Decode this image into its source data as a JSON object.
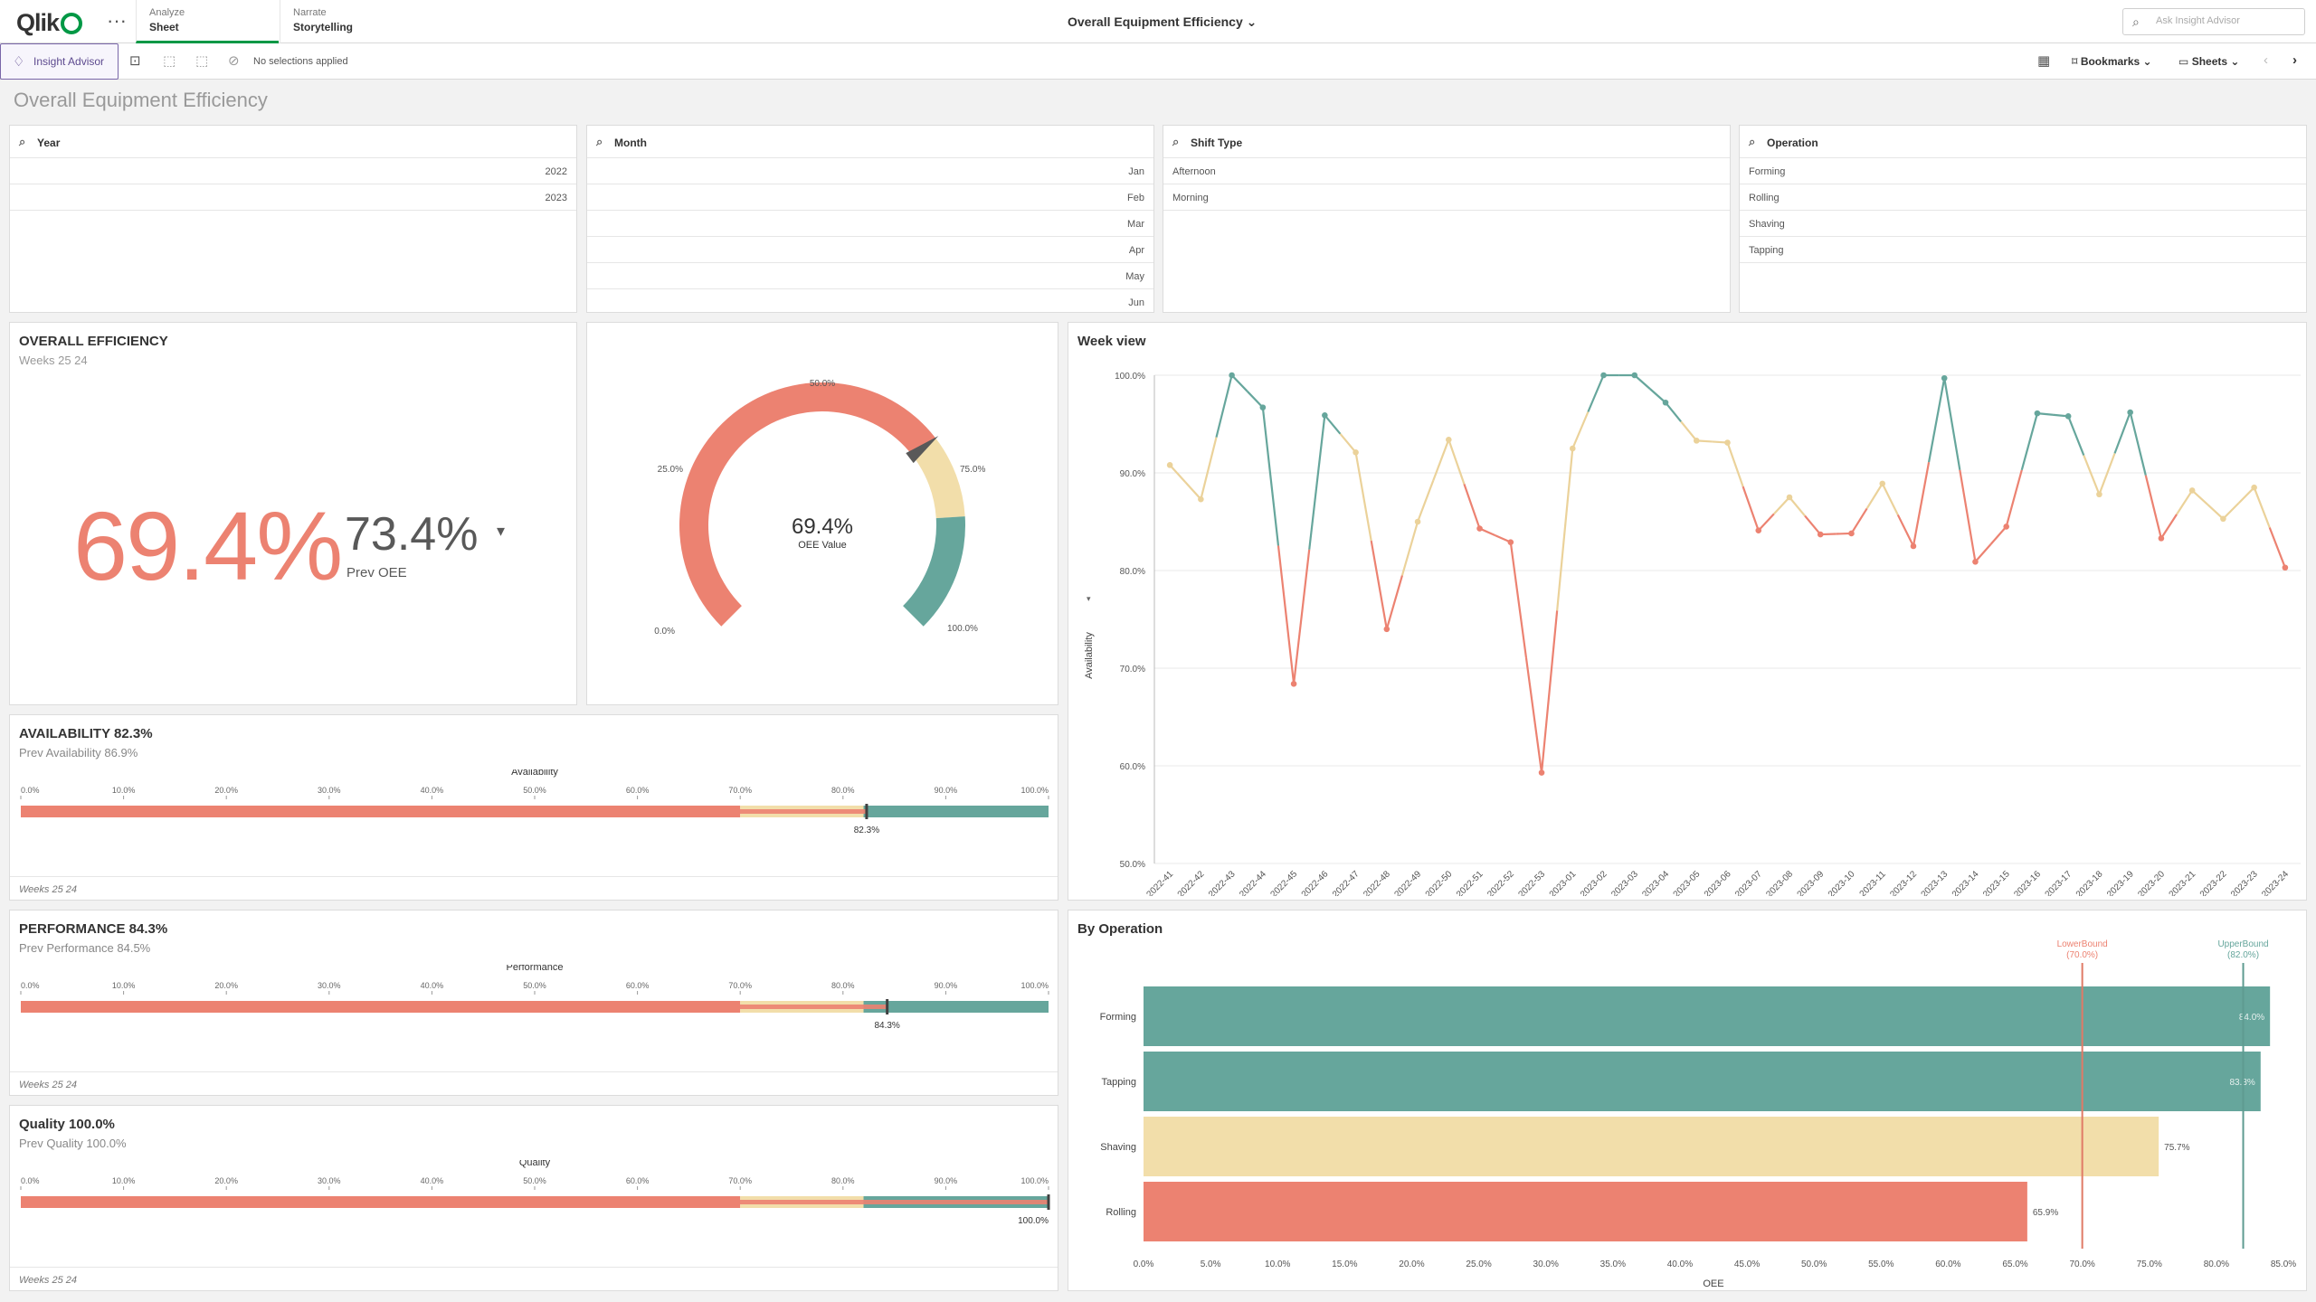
{
  "app": {
    "logo_text": "Qlik",
    "menu_glyph": "···",
    "tabs": [
      {
        "sub": "Analyze",
        "main": "Sheet"
      },
      {
        "sub": "Narrate",
        "main": "Storytelling"
      }
    ],
    "title": "Overall Equipment Efficiency",
    "ask_placeholder": "Ask Insight Advisor"
  },
  "toolbar": {
    "insight_label": "Insight Advisor",
    "selections": "No selections applied",
    "bookmarks": "Bookmarks",
    "sheets": "Sheets"
  },
  "sheet": {
    "title": "Overall Equipment Efficiency"
  },
  "filters": [
    {
      "title": "Year",
      "items": [
        "2022",
        "2023"
      ],
      "align": "r"
    },
    {
      "title": "Month",
      "items": [
        "Jan",
        "Feb",
        "Mar",
        "Apr",
        "May",
        "Jun"
      ],
      "align": "r"
    },
    {
      "title": "Shift Type",
      "items": [
        "Afternoon",
        "Morning"
      ],
      "align": "l"
    },
    {
      "title": "Operation",
      "items": [
        "Forming",
        "Rolling",
        "Shaving",
        "Tapping"
      ],
      "align": "l"
    }
  ],
  "kpi": {
    "title": "OVERALL EFFICIENCY",
    "subtitle": "Weeks 25 24",
    "value": "69.4%",
    "prev_value": "73.4%",
    "prev_label": "Prev OEE"
  },
  "gauge": {
    "value": 0.694,
    "value_label": "69.4%",
    "caption": "OEE Value",
    "ticks": [
      "0.0%",
      "25.0%",
      "50.0%",
      "75.0%",
      "100.0%"
    ]
  },
  "bullets": [
    {
      "title": "AVAILABILITY 82.3%",
      "prev": "Prev Availability 86.9%",
      "measure": "Availability",
      "value": 82.3,
      "value_label": "82.3%",
      "footer": "Weeks 25 24"
    },
    {
      "title": "PERFORMANCE 84.3%",
      "prev": "Prev Performance 84.5%",
      "measure": "Performance",
      "value": 84.3,
      "value_label": "84.3%",
      "footer": "Weeks 25 24"
    },
    {
      "title": "Quality 100.0%",
      "prev": "Prev Quality 100.0%",
      "measure": "Quality",
      "value": 100.0,
      "value_label": "100.0%",
      "footer": "Weeks 25 24"
    }
  ],
  "bullet_ticks": [
    "0.0%",
    "10.0%",
    "20.0%",
    "30.0%",
    "40.0%",
    "50.0%",
    "60.0%",
    "70.0%",
    "80.0%",
    "90.0%",
    "100.0%"
  ],
  "colors": {
    "red": "#ec8271",
    "yellow": "#f2deaa",
    "green": "#66a69c",
    "title_grey": "#999999"
  },
  "chart_data": [
    {
      "type": "line",
      "title": "Week view",
      "ylabel": "Availability",
      "xlabel": "",
      "ylim": [
        50,
        100
      ],
      "yticks": [
        "50.0%",
        "60.0%",
        "70.0%",
        "80.0%",
        "90.0%",
        "100.0%"
      ],
      "grid": true,
      "categories": [
        "2022-41",
        "2022-42",
        "2022-43",
        "2022-44",
        "2022-45",
        "2022-46",
        "2022-47",
        "2022-48",
        "2022-49",
        "2022-50",
        "2022-51",
        "2022-52",
        "2022-53",
        "2023-01",
        "2023-02",
        "2023-03",
        "2023-04",
        "2023-05",
        "2023-06",
        "2023-07",
        "2023-08",
        "2023-09",
        "2023-10",
        "2023-11",
        "2023-12",
        "2023-13",
        "2023-14",
        "2023-15",
        "2023-16",
        "2023-17",
        "2023-18",
        "2023-19",
        "2023-20",
        "2023-21",
        "2023-22",
        "2023-23",
        "2023-24"
      ],
      "values": [
        90.8,
        87.3,
        100,
        96.7,
        68.4,
        95.9,
        92.1,
        74,
        85,
        93.4,
        84.3,
        82.9,
        59.3,
        92.5,
        100,
        100,
        97.2,
        93.3,
        93.1,
        84.1,
        87.5,
        83.7,
        83.8,
        88.9,
        82.5,
        99.7,
        80.9,
        84.5,
        96.1,
        95.8,
        87.8,
        96.2,
        83.3,
        88.2,
        85.3,
        88.5,
        80.3
      ]
    },
    {
      "type": "bar",
      "orientation": "horizontal",
      "title": "By Operation",
      "categories": [
        "Forming",
        "Tapping",
        "Shaving",
        "Rolling"
      ],
      "values": [
        84.0,
        83.3,
        75.7,
        65.9
      ],
      "value_labels": [
        "84.0%",
        "83.3%",
        "75.7%",
        "65.9%"
      ],
      "xlabel": "OEE",
      "xlim": [
        0,
        85
      ],
      "xticks": [
        "0.0%",
        "5.0%",
        "10.0%",
        "15.0%",
        "20.0%",
        "25.0%",
        "30.0%",
        "35.0%",
        "40.0%",
        "45.0%",
        "50.0%",
        "55.0%",
        "60.0%",
        "65.0%",
        "70.0%",
        "75.0%",
        "80.0%",
        "85.0%"
      ],
      "reference_lines": [
        {
          "name": "LowerBound",
          "label": "(70.0%)",
          "value": 70.0
        },
        {
          "name": "UpperBound",
          "label": "(82.0%)",
          "value": 82.0
        }
      ]
    }
  ]
}
